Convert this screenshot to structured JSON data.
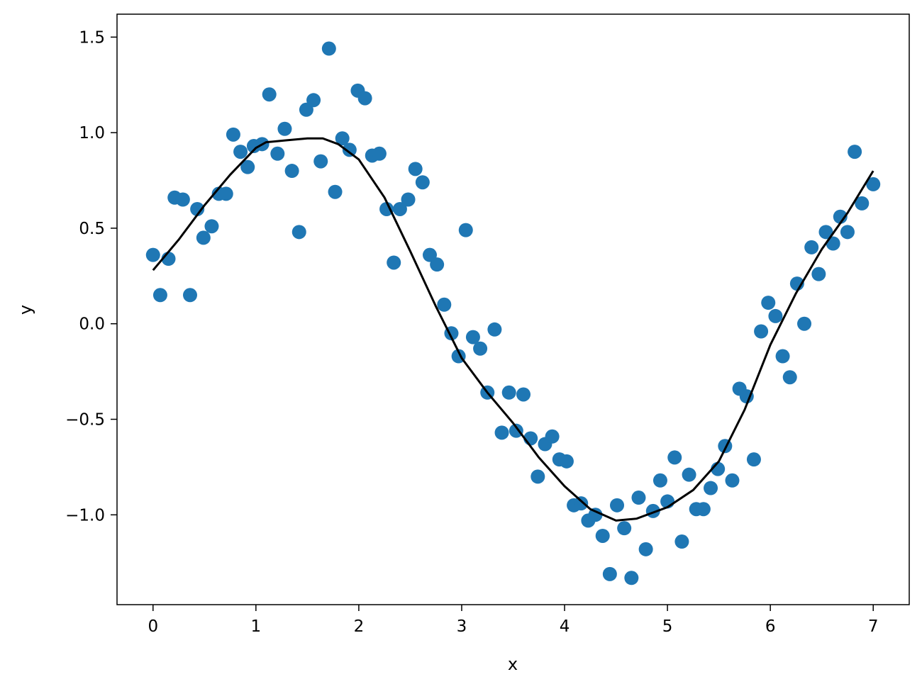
{
  "chart_data": {
    "type": "scatter",
    "title": "",
    "xlabel": "x",
    "ylabel": "y",
    "xlim": [
      -0.35,
      7.35
    ],
    "ylim": [
      -1.47,
      1.62
    ],
    "xticks": [
      0,
      1,
      2,
      3,
      4,
      5,
      6,
      7
    ],
    "yticks": [
      -1.0,
      -0.5,
      0.0,
      0.5,
      1.0,
      1.5
    ],
    "xtick_labels": [
      "0",
      "1",
      "2",
      "3",
      "4",
      "5",
      "6",
      "7"
    ],
    "ytick_labels": [
      "−1.0",
      "−0.5",
      "0.0",
      "0.5",
      "1.0",
      "1.5"
    ],
    "grid": false,
    "legend": "none",
    "colors": {
      "points": "#1f77b4",
      "line": "#000000",
      "axes": "#000000"
    },
    "series": [
      {
        "type": "scatter",
        "x": [
          0.0,
          0.07,
          0.15,
          0.21,
          0.29,
          0.36,
          0.43,
          0.49,
          0.57,
          0.64,
          0.71,
          0.78,
          0.85,
          0.92,
          0.98,
          1.06,
          1.13,
          1.21,
          1.28,
          1.35,
          1.42,
          1.49,
          1.56,
          1.63,
          1.71,
          1.77,
          1.84,
          1.91,
          1.99,
          2.06,
          2.13,
          2.2,
          2.27,
          2.34,
          2.4,
          2.48,
          2.55,
          2.62,
          2.69,
          2.76,
          2.83,
          2.9,
          2.97,
          3.04,
          3.11,
          3.18,
          3.25,
          3.32,
          3.39,
          3.46,
          3.53,
          3.6,
          3.67,
          3.74,
          3.81,
          3.88,
          3.95,
          4.02,
          4.09,
          4.16,
          4.23,
          4.3,
          4.37,
          4.44,
          4.51,
          4.58,
          4.65,
          4.72,
          4.79,
          4.86,
          4.93,
          5.0,
          5.07,
          5.14,
          5.21,
          5.28,
          5.35,
          5.42,
          5.49,
          5.56,
          5.63,
          5.7,
          5.77,
          5.84,
          5.91,
          5.98,
          6.05,
          6.12,
          6.19,
          6.26,
          6.33,
          6.4,
          6.47,
          6.54,
          6.61,
          6.68,
          6.75,
          6.82,
          6.89,
          7.0
        ],
        "y": [
          0.36,
          0.15,
          0.34,
          0.66,
          0.65,
          0.15,
          0.6,
          0.45,
          0.51,
          0.68,
          0.68,
          0.99,
          0.9,
          0.82,
          0.93,
          0.94,
          1.2,
          0.89,
          1.02,
          0.8,
          0.48,
          1.12,
          1.17,
          0.85,
          1.44,
          0.69,
          0.97,
          0.91,
          1.22,
          1.18,
          0.88,
          0.89,
          0.6,
          0.32,
          0.6,
          0.65,
          0.81,
          0.74,
          0.36,
          0.31,
          0.1,
          -0.05,
          -0.17,
          0.49,
          -0.07,
          -0.13,
          -0.36,
          -0.03,
          -0.57,
          -0.36,
          -0.56,
          -0.37,
          -0.6,
          -0.8,
          -0.63,
          -0.59,
          -0.71,
          -0.72,
          -0.95,
          -0.94,
          -1.03,
          -1.0,
          -1.11,
          -1.31,
          -0.95,
          -1.07,
          -1.33,
          -0.91,
          -1.18,
          -0.98,
          -0.82,
          -0.93,
          -0.7,
          -1.14,
          -0.79,
          -0.97,
          -0.97,
          -0.86,
          -0.76,
          -0.64,
          -0.82,
          -0.34,
          -0.38,
          -0.71,
          -0.04,
          0.11,
          0.04,
          -0.17,
          -0.28,
          0.21,
          0.0,
          0.4,
          0.26,
          0.48,
          0.42,
          0.56,
          0.48,
          0.9,
          0.63,
          0.73
        ]
      },
      {
        "type": "line",
        "x": [
          0.0,
          0.25,
          0.5,
          0.75,
          1.0,
          1.1,
          1.3,
          1.5,
          1.65,
          1.8,
          2.0,
          2.25,
          2.5,
          2.75,
          3.0,
          3.25,
          3.5,
          3.75,
          4.0,
          4.25,
          4.5,
          4.7,
          5.0,
          5.25,
          5.5,
          5.75,
          6.0,
          6.25,
          6.5,
          6.75,
          7.0
        ],
        "y": [
          0.28,
          0.44,
          0.62,
          0.78,
          0.92,
          0.95,
          0.96,
          0.97,
          0.97,
          0.94,
          0.86,
          0.66,
          0.38,
          0.09,
          -0.18,
          -0.36,
          -0.52,
          -0.7,
          -0.85,
          -0.97,
          -1.03,
          -1.02,
          -0.96,
          -0.87,
          -0.72,
          -0.45,
          -0.11,
          0.16,
          0.39,
          0.58,
          0.8
        ]
      }
    ]
  }
}
